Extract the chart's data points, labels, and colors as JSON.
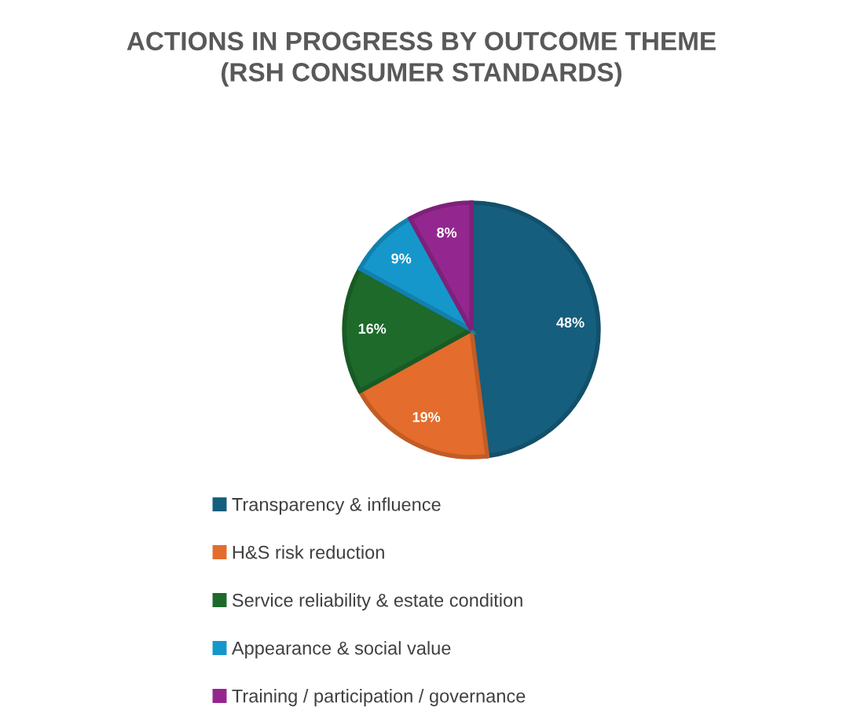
{
  "chart_data": {
    "type": "pie",
    "title": "ACTIONS IN PROGRESS BY OUTCOME THEME\n(RSH CONSUMER STANDARDS)",
    "categories": [
      "Transparency & influence",
      "H&S risk reduction",
      "Service reliability & estate condition",
      "Appearance & social value",
      "Training / participation / governance"
    ],
    "values": [
      48,
      19,
      16,
      9,
      8
    ],
    "colors": [
      "#155e7e",
      "#e46c2c",
      "#1d6a2a",
      "#1597cc",
      "#94278f"
    ],
    "value_labels": [
      "48%",
      "19%",
      "16%",
      "9%",
      "8%"
    ],
    "legend": "bottom"
  }
}
